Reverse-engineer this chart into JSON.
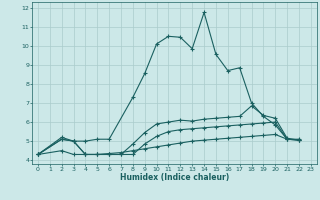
{
  "xlabel": "Humidex (Indice chaleur)",
  "background_color": "#cce8e8",
  "grid_color": "#aacccc",
  "line_color": "#1a6060",
  "xlim": [
    -0.5,
    23.5
  ],
  "ylim": [
    3.8,
    12.3
  ],
  "xticks": [
    0,
    1,
    2,
    3,
    4,
    5,
    6,
    7,
    8,
    9,
    10,
    11,
    12,
    13,
    14,
    15,
    16,
    17,
    18,
    19,
    20,
    21,
    22,
    23
  ],
  "yticks": [
    4,
    5,
    6,
    7,
    8,
    9,
    10,
    11,
    12
  ],
  "series": [
    {
      "x": [
        0,
        1,
        2,
        3,
        4,
        5,
        6,
        7,
        8,
        9,
        10,
        11,
        12,
        13,
        14,
        15,
        16,
        17,
        18,
        19,
        20,
        21,
        22,
        23
      ],
      "y": [
        4.3,
        null,
        5.2,
        5.0,
        5.0,
        5.1,
        5.1,
        null,
        7.3,
        8.55,
        10.1,
        10.5,
        10.45,
        9.85,
        11.75,
        9.55,
        8.7,
        8.85,
        7.0,
        6.3,
        5.85,
        5.1,
        5.1,
        null
      ]
    },
    {
      "x": [
        0,
        1,
        2,
        3,
        4,
        5,
        6,
        7,
        8,
        9,
        10,
        11,
        12,
        13,
        14,
        15,
        16,
        17,
        18,
        19,
        20,
        21,
        22,
        23
      ],
      "y": [
        4.3,
        null,
        5.1,
        5.0,
        4.3,
        4.3,
        4.3,
        4.3,
        4.85,
        5.45,
        5.9,
        6.0,
        6.1,
        6.05,
        6.15,
        6.2,
        6.25,
        6.3,
        6.85,
        6.35,
        6.2,
        5.15,
        5.05,
        null
      ]
    },
    {
      "x": [
        0,
        1,
        2,
        3,
        4,
        5,
        6,
        7,
        8,
        9,
        10,
        11,
        12,
        13,
        14,
        15,
        16,
        17,
        18,
        19,
        20,
        21,
        22,
        23
      ],
      "y": [
        4.3,
        null,
        5.1,
        5.0,
        4.3,
        4.3,
        4.3,
        4.3,
        4.3,
        4.85,
        5.25,
        5.5,
        5.6,
        5.65,
        5.7,
        5.75,
        5.8,
        5.85,
        5.9,
        5.95,
        6.0,
        5.1,
        5.05,
        null
      ]
    },
    {
      "x": [
        0,
        1,
        2,
        3,
        4,
        5,
        6,
        7,
        8,
        9,
        10,
        11,
        12,
        13,
        14,
        15,
        16,
        17,
        18,
        19,
        20,
        21,
        22,
        23
      ],
      "y": [
        4.3,
        null,
        4.5,
        4.3,
        4.3,
        4.3,
        4.35,
        4.4,
        4.5,
        4.6,
        4.7,
        4.8,
        4.9,
        5.0,
        5.05,
        5.1,
        5.15,
        5.2,
        5.25,
        5.3,
        5.35,
        5.1,
        5.05,
        null
      ]
    }
  ]
}
